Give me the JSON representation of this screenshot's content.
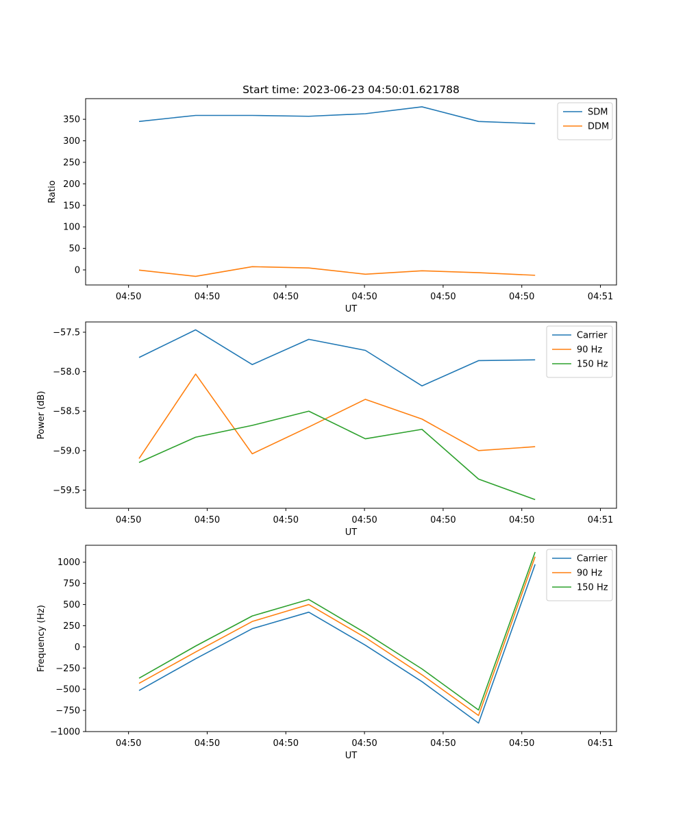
{
  "figure_title": "Start time: 2023-06-23 04:50:01.621788",
  "colors": {
    "blue": "#1f77b4",
    "orange": "#ff7f0e",
    "green": "#2ca02c"
  },
  "chart_data": [
    {
      "type": "line",
      "title": "Start time: 2023-06-23 04:50:01.621788",
      "xlabel": "UT",
      "ylabel": "Ratio",
      "x_tick_labels": [
        "04:50",
        "04:50",
        "04:50",
        "04:50",
        "04:50",
        "04:50",
        "04:51"
      ],
      "x": [
        1,
        2,
        3,
        4,
        5,
        6,
        7,
        8
      ],
      "xlim": [
        0.25,
        9.25
      ],
      "ylim": [
        -35,
        398
      ],
      "y_ticks": [
        0,
        50,
        100,
        150,
        200,
        250,
        300,
        350
      ],
      "y_tick_labels": [
        "0",
        "50",
        "100",
        "150",
        "200",
        "250",
        "300",
        "350"
      ],
      "grid": false,
      "legend": "upper-right",
      "series": [
        {
          "name": "SDM",
          "color": "#1f77b4",
          "values": [
            345,
            359,
            359,
            357,
            363,
            379,
            345,
            340
          ]
        },
        {
          "name": "DDM",
          "color": "#ff7f0e",
          "values": [
            -0.5,
            -15,
            7.5,
            4.5,
            -10,
            -2,
            -6.5,
            -12.5
          ]
        }
      ]
    },
    {
      "type": "line",
      "title": "",
      "xlabel": "UT",
      "ylabel": "Power (dB)",
      "x_tick_labels": [
        "04:50",
        "04:50",
        "04:50",
        "04:50",
        "04:50",
        "04:50",
        "04:51"
      ],
      "x": [
        1,
        2,
        3,
        4,
        5,
        6,
        7,
        8
      ],
      "xlim": [
        0.25,
        9.25
      ],
      "ylim": [
        -59.73,
        -57.37
      ],
      "y_ticks": [
        -59.5,
        -59.0,
        -58.5,
        -58.0,
        -57.5
      ],
      "y_tick_labels": [
        "−59.5",
        "−59.0",
        "−58.5",
        "−58.0",
        "−57.5"
      ],
      "grid": false,
      "legend": "upper-right",
      "series": [
        {
          "name": "Carrier",
          "color": "#1f77b4",
          "values": [
            -57.82,
            -57.47,
            -57.91,
            -57.59,
            -57.73,
            -58.18,
            -57.86,
            -57.85
          ]
        },
        {
          "name": "90 Hz",
          "color": "#ff7f0e",
          "values": [
            -59.1,
            -58.03,
            -59.04,
            -58.7,
            -58.35,
            -58.6,
            -59.0,
            -58.95
          ]
        },
        {
          "name": "150 Hz",
          "color": "#2ca02c",
          "values": [
            -59.15,
            -58.83,
            -58.68,
            -58.5,
            -58.85,
            -58.73,
            -59.36,
            -59.62
          ]
        }
      ]
    },
    {
      "type": "line",
      "title": "",
      "xlabel": "UT",
      "ylabel": "Frequency (Hz)",
      "x_tick_labels": [
        "04:50",
        "04:50",
        "04:50",
        "04:50",
        "04:50",
        "04:50",
        "04:51"
      ],
      "x": [
        1,
        2,
        3,
        4,
        5,
        6,
        7,
        8
      ],
      "xlim": [
        0.25,
        9.25
      ],
      "ylim": [
        -1000,
        1200
      ],
      "y_ticks": [
        -1000,
        -750,
        -500,
        -250,
        0,
        250,
        500,
        750,
        1000
      ],
      "y_tick_labels": [
        "−1000",
        "−750",
        "−500",
        "−250",
        "0",
        "250",
        "500",
        "750",
        "1000"
      ],
      "grid": false,
      "legend": "upper-right",
      "series": [
        {
          "name": "Carrier",
          "color": "#1f77b4",
          "values": [
            -515,
            -140,
            215,
            410,
            20,
            -410,
            -900,
            975
          ]
        },
        {
          "name": "90 Hz",
          "color": "#ff7f0e",
          "values": [
            -430,
            -60,
            300,
            500,
            110,
            -330,
            -810,
            1065
          ]
        },
        {
          "name": "150 Hz",
          "color": "#2ca02c",
          "values": [
            -370,
            10,
            365,
            560,
            165,
            -260,
            -745,
            1120
          ]
        }
      ]
    }
  ]
}
